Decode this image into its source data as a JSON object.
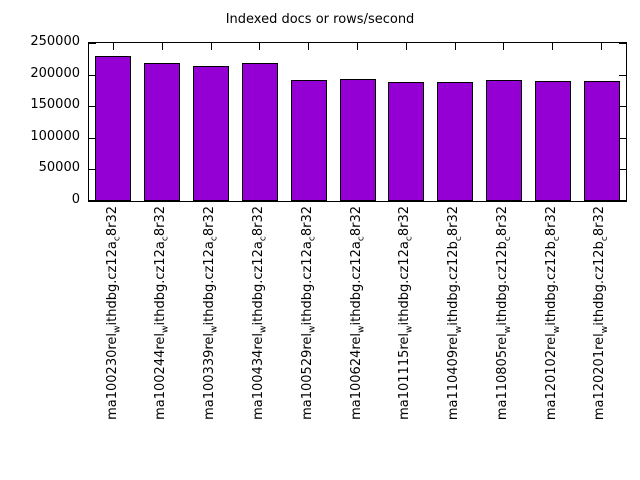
{
  "chart_data": {
    "type": "bar",
    "title": "Indexed docs or rows/second",
    "categories": [
      "ma100230rel_withdbg.cz12a_c8r32",
      "ma100244rel_withdbg.cz12a_c8r32",
      "ma100339rel_withdbg.cz12a_c8r32",
      "ma100434rel_withdbg.cz12a_c8r32",
      "ma100529rel_withdbg.cz12a_c8r32",
      "ma100624rel_withdbg.cz12a_c8r32",
      "ma101115rel_withdbg.cz12a_c8r32",
      "ma110409rel_withdbg.cz12b_c8r32",
      "ma110805rel_withdbg.cz12b_c8r32",
      "ma120102rel_withdbg.cz12b_c8r32",
      "ma120201rel_withdbg.cz12b_c8r32"
    ],
    "values": [
      230000,
      218000,
      214000,
      218000,
      191000,
      193000,
      188000,
      188000,
      191000,
      190000,
      190000
    ],
    "xlabel": "",
    "ylabel": "",
    "ylim": [
      0,
      250000
    ],
    "yticks": [
      0,
      50000,
      100000,
      150000,
      200000,
      250000
    ],
    "xtick_rotation": -90,
    "grid": false,
    "legend": "none",
    "bar_color": "#9400d3",
    "bar_border_color": "#000000",
    "background_color": "#ffffff",
    "label_subscript_convention": "underscore prefixes a subscript character"
  }
}
